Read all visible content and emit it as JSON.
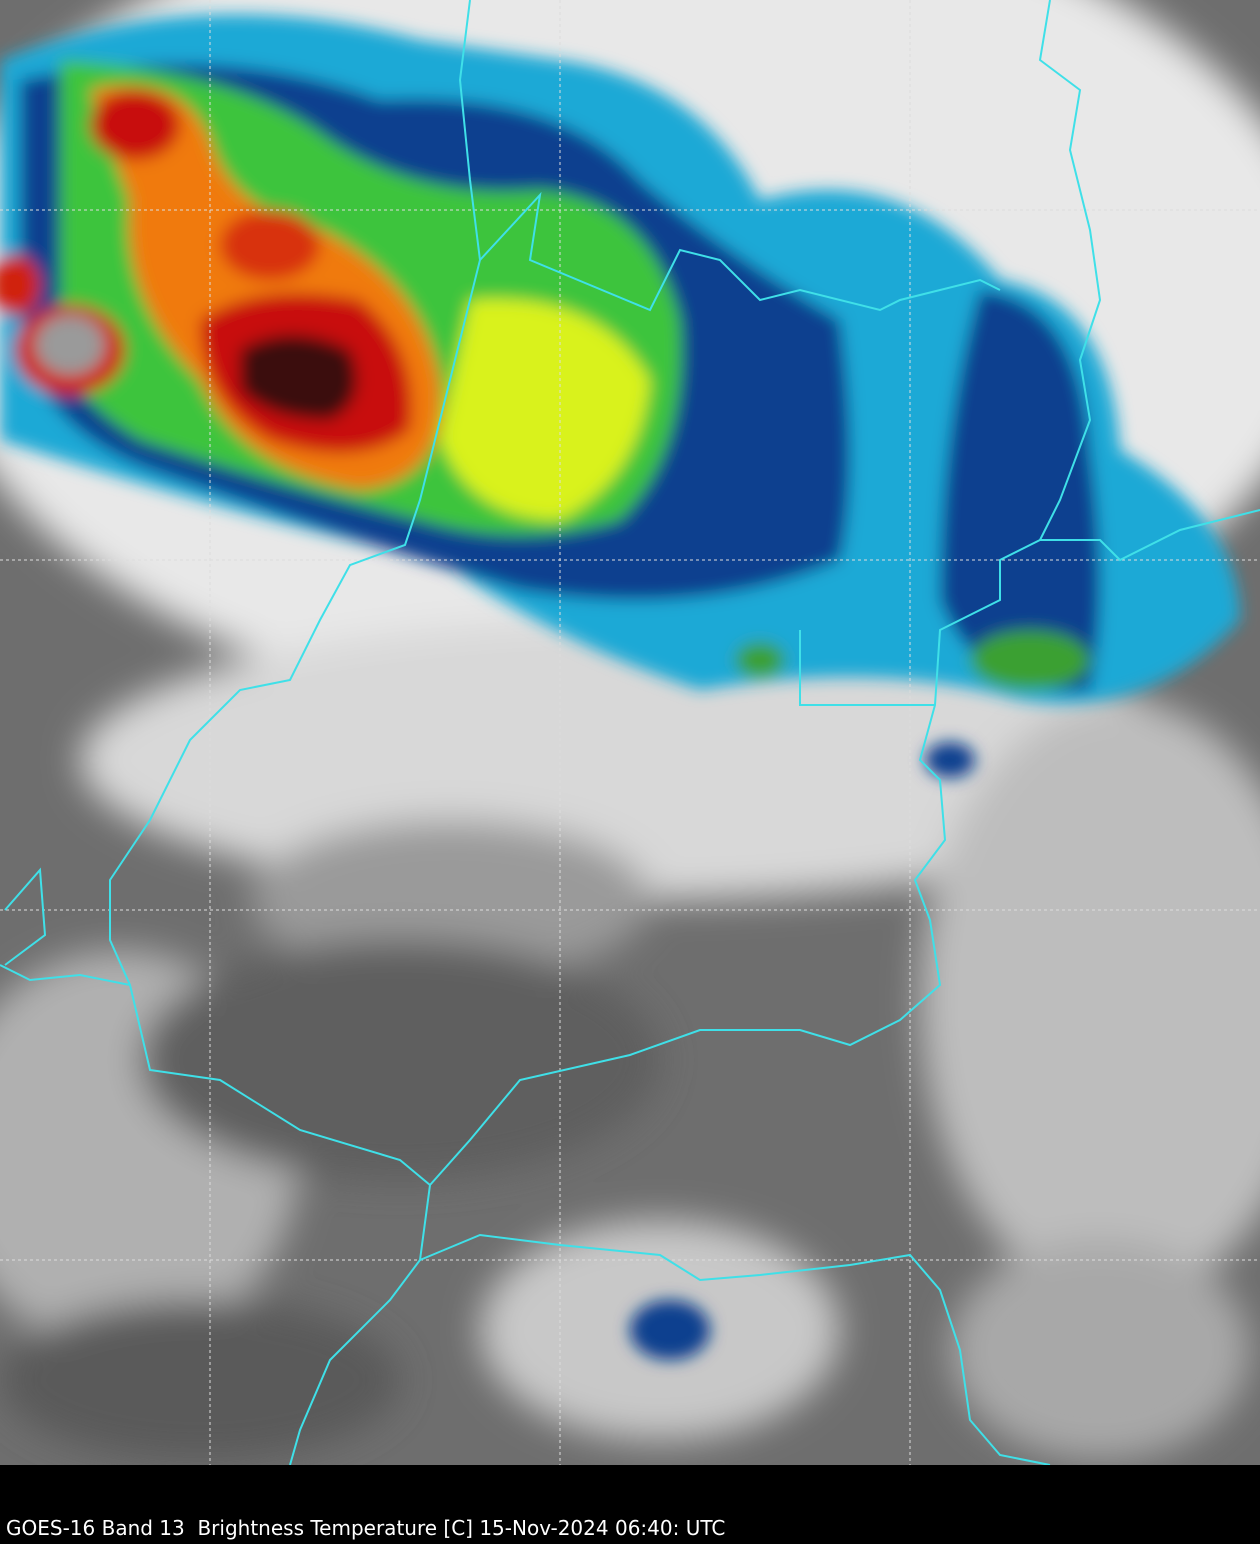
{
  "caption": "GOES-16 Band 13  Brightness Temperature [C] 15-Nov-2024 06:40: UTC"
}
